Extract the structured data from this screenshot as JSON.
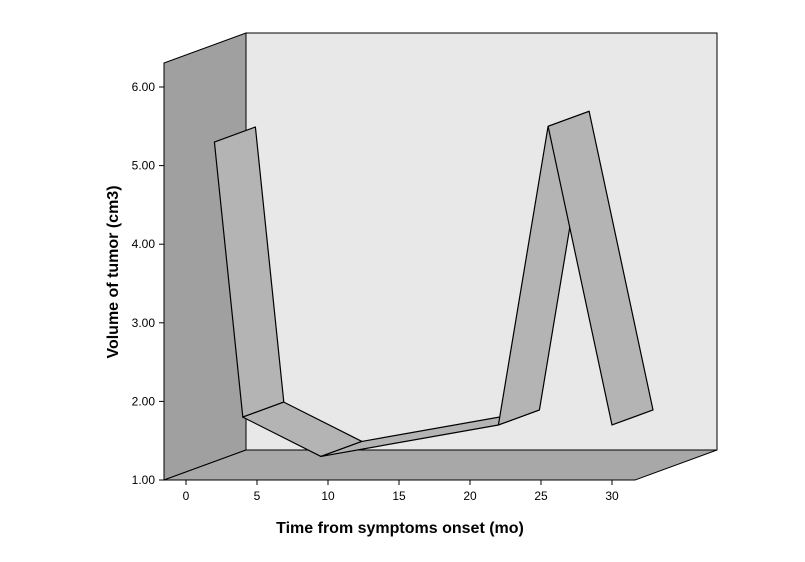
{
  "chart_data": {
    "type": "line",
    "style": "3d-ribbon",
    "title": "",
    "xlabel": "Time from symptoms onset (mo)",
    "ylabel": "Volume of tumor (cm3)",
    "xlim": [
      0,
      30
    ],
    "ylim": [
      1.0,
      6.0
    ],
    "x_ticks": [
      0,
      5,
      10,
      15,
      20,
      25,
      30
    ],
    "x_tick_labels": [
      "0",
      "5",
      "10",
      "15",
      "20",
      "25",
      "30"
    ],
    "y_ticks": [
      1.0,
      2.0,
      3.0,
      4.0,
      5.0,
      6.0
    ],
    "y_tick_labels": [
      "1.00",
      "2.00",
      "3.00",
      "4.00",
      "5.00",
      "6.00"
    ],
    "series": [
      {
        "x": [
          2,
          4,
          9.5,
          22,
          25.5,
          30
        ],
        "values": [
          5.3,
          1.8,
          1.3,
          1.7,
          5.5,
          1.7
        ]
      }
    ],
    "grid": false,
    "legend": "none",
    "colors": {
      "back_wall": "#e8e8e8",
      "side_wall": "#a0a0a0",
      "floor": "#a8a8a8",
      "ribbon": "#b4b4b4",
      "ribbon_edge": "#000000"
    }
  }
}
